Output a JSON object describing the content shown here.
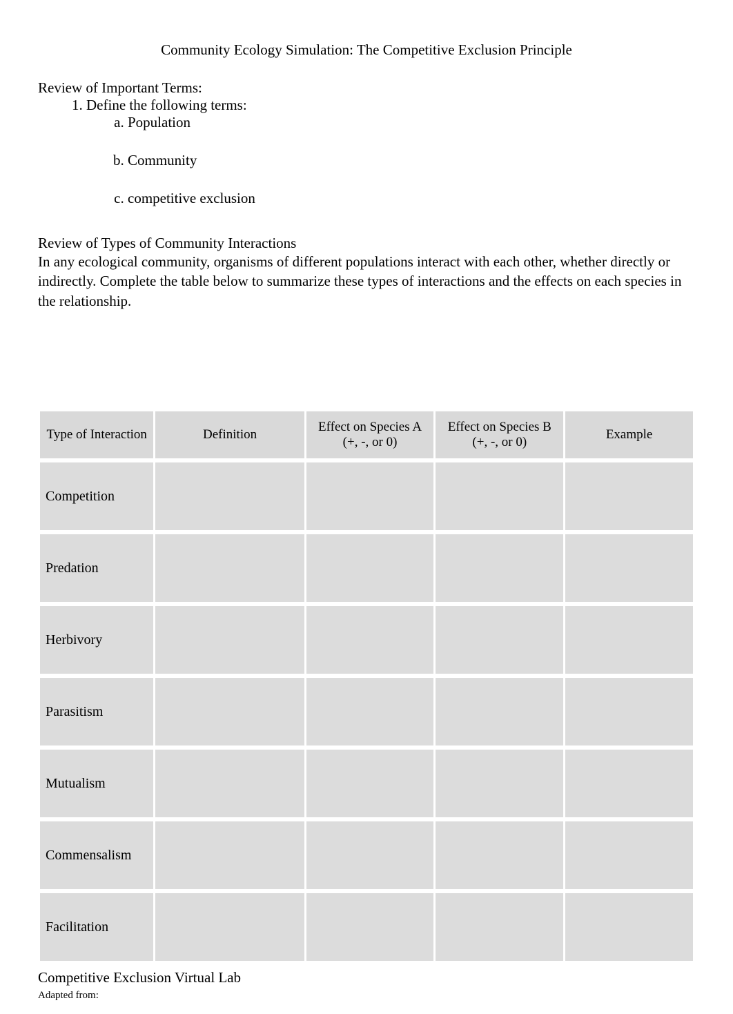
{
  "title": "Community Ecology Simulation: The Competitive Exclusion Principle",
  "review_terms_heading": "Review of Important Terms:",
  "define_prompt": "Define the following terms:",
  "terms": {
    "a": "Population",
    "b": "Community",
    "c": "competitive exclusion"
  },
  "review_interactions_heading": "Review of Types of Community Interactions",
  "interactions_intro": "In any ecological community, organisms of different populations interact with each other, whether directly or indirectly. Complete the table below to summarize these types of interactions and the effects on each species in the relationship.",
  "table": {
    "headers": {
      "type": "Type of Interaction",
      "definition": "Definition",
      "effect_a_line1": "Effect on Species A",
      "effect_a_line2": "(+, -, or 0)",
      "effect_b_line1": "Effect on Species B",
      "effect_b_line2": "(+, -, or 0)",
      "example": "Example"
    },
    "rows": [
      {
        "label": "Competition",
        "definition": "",
        "effect_a": "",
        "effect_b": "",
        "example": ""
      },
      {
        "label": "Predation",
        "definition": "",
        "effect_a": "",
        "effect_b": "",
        "example": ""
      },
      {
        "label": "Herbivory",
        "definition": "",
        "effect_a": "",
        "effect_b": "",
        "example": ""
      },
      {
        "label": "Parasitism",
        "definition": "",
        "effect_a": "",
        "effect_b": "",
        "example": ""
      },
      {
        "label": "Mutualism",
        "definition": "",
        "effect_a": "",
        "effect_b": "",
        "example": ""
      },
      {
        "label": "Commensalism",
        "definition": "",
        "effect_a": "",
        "effect_b": "",
        "example": ""
      },
      {
        "label": "Facilitation",
        "definition": "",
        "effect_a": "",
        "effect_b": "",
        "example": ""
      }
    ]
  },
  "virtual_lab_heading": "Competitive Exclusion Virtual Lab",
  "adapted_from": "Adapted from:",
  "colors": {
    "page_bg": "#ffffff",
    "text": "#000000",
    "table_header_bg": "#d9d9d9",
    "table_cell_bg": "#dcdcdc"
  }
}
